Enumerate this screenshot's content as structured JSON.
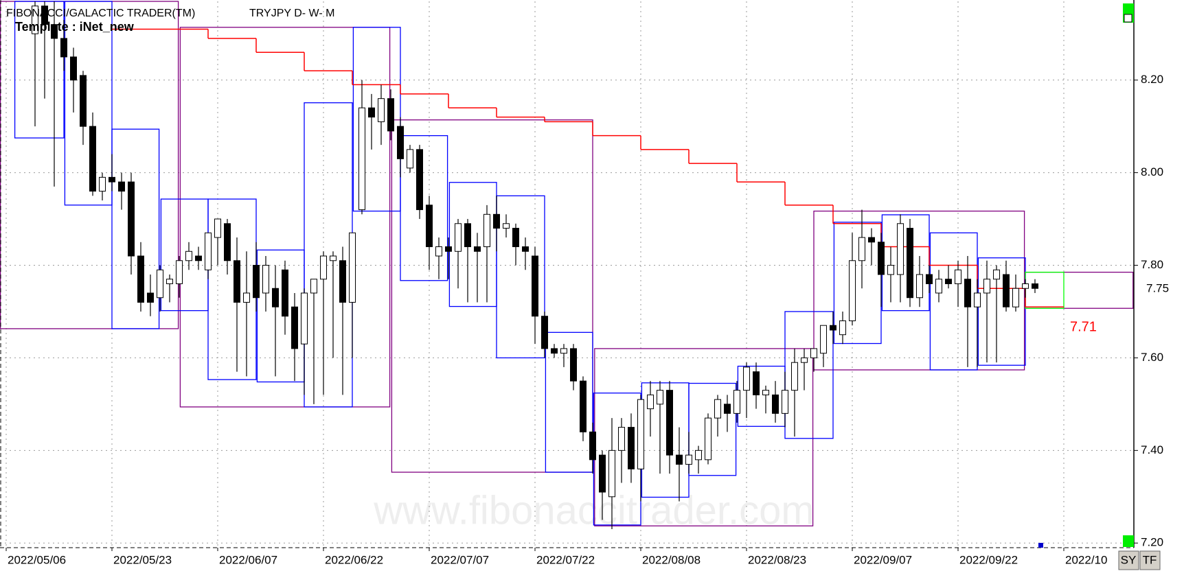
{
  "chart_data": {
    "type": "candlestick",
    "title": "FIBONACCI/GALACTIC TRADER(TM)",
    "subtitle": "TRYJPY D- W- M",
    "template": "Template : iNet_new",
    "watermark": "www.fibonaccitrader.com",
    "buttons": [
      "SY",
      "TF"
    ],
    "categories": [
      "2022/05/06",
      null,
      null,
      null,
      null,
      null,
      null,
      null,
      null,
      null,
      null,
      "2022/05/23",
      null,
      null,
      null,
      null,
      null,
      null,
      null,
      null,
      null,
      null,
      "2022/06/07",
      null,
      null,
      null,
      null,
      null,
      null,
      null,
      null,
      null,
      null,
      "2022/06/22",
      null,
      null,
      null,
      null,
      null,
      null,
      null,
      null,
      null,
      null,
      "2022/07/07",
      null,
      null,
      null,
      null,
      null,
      null,
      null,
      null,
      null,
      null,
      "2022/07/22",
      null,
      null,
      null,
      null,
      null,
      null,
      null,
      null,
      null,
      null,
      "2022/08/08",
      null,
      null,
      null,
      null,
      null,
      null,
      null,
      null,
      null,
      null,
      "2022/08/23",
      null,
      null,
      null,
      null,
      null,
      null,
      null,
      null,
      null,
      null,
      "2022/09/07",
      null,
      null,
      null,
      null,
      null,
      null,
      null,
      null,
      null,
      null,
      "2022/09/22",
      null,
      null,
      null,
      null,
      null,
      null,
      null,
      null,
      null,
      null,
      "2022/10"
    ],
    "open": [
      null,
      null,
      null,
      8.3,
      8.36,
      8.32,
      8.29,
      8.25,
      8.21,
      8.1,
      7.96,
      7.99,
      7.98,
      7.98,
      7.82,
      7.74,
      7.73,
      7.76,
      7.76,
      7.81,
      7.82,
      7.79,
      7.86,
      7.89,
      7.81,
      7.72,
      7.8,
      7.74,
      7.75,
      7.79,
      7.71,
      7.63,
      7.74,
      7.77,
      7.81,
      7.81,
      7.72,
      7.92,
      8.14,
      8.11,
      8.16,
      8.1,
      8.01,
      8.05,
      7.93,
      7.82,
      7.84,
      7.83,
      7.89,
      7.84,
      7.84,
      7.91,
      7.88,
      7.88,
      7.84,
      7.82,
      7.69,
      7.62,
      7.61,
      7.62,
      7.55,
      7.44,
      7.39,
      7.3,
      7.4,
      7.45,
      7.36,
      7.49,
      7.5,
      7.53,
      7.39,
      7.37,
      7.38,
      7.38,
      7.47,
      7.5,
      7.48,
      7.53,
      7.57,
      7.52,
      7.52,
      7.48,
      7.53,
      7.59,
      7.6,
      7.61,
      7.67,
      7.65,
      7.68,
      7.81,
      7.86,
      7.85,
      7.78,
      7.78,
      7.88,
      7.73,
      7.78,
      7.74,
      7.77,
      7.76,
      7.77,
      7.71,
      7.74,
      7.77,
      7.78,
      7.71,
      7.75,
      7.76,
      null,
      null,
      null
    ],
    "high": [
      null,
      null,
      null,
      8.37,
      8.37,
      8.37,
      8.33,
      8.27,
      8.22,
      8.13,
      8.0,
      8.04,
      8.0,
      8.0,
      7.85,
      7.78,
      7.8,
      7.78,
      7.82,
      7.85,
      7.84,
      7.87,
      7.9,
      7.9,
      7.86,
      7.83,
      7.85,
      7.82,
      7.8,
      7.81,
      7.74,
      7.75,
      7.76,
      7.83,
      7.83,
      7.84,
      7.87,
      8.2,
      8.17,
      8.19,
      8.18,
      8.12,
      8.06,
      8.06,
      7.95,
      7.86,
      7.86,
      7.9,
      7.9,
      7.87,
      7.93,
      7.95,
      7.91,
      7.89,
      7.86,
      7.84,
      7.7,
      7.63,
      7.63,
      7.63,
      7.56,
      7.46,
      7.4,
      7.47,
      7.47,
      7.48,
      7.52,
      7.55,
      7.55,
      7.55,
      7.45,
      7.44,
      7.41,
      7.48,
      7.52,
      7.52,
      7.55,
      7.59,
      7.59,
      7.54,
      7.55,
      7.57,
      7.62,
      7.62,
      7.62,
      7.67,
      7.7,
      7.7,
      7.87,
      7.92,
      7.88,
      7.87,
      7.84,
      7.91,
      7.9,
      7.82,
      7.8,
      7.79,
      7.8,
      7.81,
      7.82,
      7.77,
      7.81,
      7.8,
      7.81,
      7.78,
      7.77,
      7.77,
      null,
      null,
      null
    ],
    "low": [
      null,
      null,
      null,
      8.1,
      8.16,
      7.97,
      8.22,
      8.13,
      8.06,
      7.95,
      7.94,
      7.96,
      7.92,
      7.78,
      7.7,
      7.69,
      7.7,
      7.72,
      7.73,
      7.79,
      7.79,
      7.77,
      7.8,
      7.78,
      7.57,
      7.56,
      7.7,
      7.7,
      7.56,
      7.65,
      7.55,
      7.52,
      7.5,
      7.52,
      7.6,
      7.52,
      7.6,
      7.91,
      8.05,
      8.06,
      8.07,
      7.99,
      8.0,
      7.9,
      7.79,
      7.77,
      7.77,
      7.75,
      7.72,
      7.72,
      7.72,
      7.83,
      7.86,
      7.8,
      7.79,
      7.63,
      7.6,
      7.6,
      7.58,
      7.53,
      7.42,
      7.35,
      7.25,
      7.23,
      7.33,
      7.33,
      7.29,
      7.43,
      7.35,
      7.35,
      7.29,
      7.35,
      7.35,
      7.37,
      7.43,
      7.44,
      7.46,
      7.47,
      7.49,
      7.48,
      7.46,
      7.45,
      7.43,
      7.53,
      7.57,
      7.58,
      7.63,
      7.63,
      7.67,
      7.75,
      7.8,
      7.71,
      7.72,
      7.72,
      7.71,
      7.71,
      7.74,
      7.72,
      7.75,
      7.71,
      7.58,
      7.58,
      7.59,
      7.59,
      7.7,
      7.7,
      7.73,
      7.74,
      null,
      null,
      null
    ],
    "close": [
      null,
      null,
      null,
      8.36,
      8.32,
      8.29,
      8.25,
      8.2,
      8.1,
      7.96,
      7.99,
      7.98,
      7.96,
      7.82,
      7.72,
      7.72,
      7.79,
      7.77,
      7.81,
      7.83,
      7.81,
      7.87,
      7.9,
      7.81,
      7.72,
      7.74,
      7.73,
      7.8,
      7.71,
      7.69,
      7.62,
      7.74,
      7.77,
      7.82,
      7.82,
      7.72,
      7.87,
      8.14,
      8.12,
      8.16,
      8.09,
      8.03,
      8.05,
      7.92,
      7.84,
      7.84,
      7.83,
      7.89,
      7.84,
      7.83,
      7.91,
      7.88,
      7.89,
      7.84,
      7.83,
      7.69,
      7.62,
      7.61,
      7.62,
      7.55,
      7.44,
      7.38,
      7.31,
      7.4,
      7.45,
      7.36,
      7.51,
      7.52,
      7.53,
      7.39,
      7.37,
      7.39,
      7.4,
      7.47,
      7.51,
      7.48,
      7.53,
      7.58,
      7.52,
      7.53,
      7.48,
      7.53,
      7.59,
      7.6,
      7.62,
      7.67,
      7.66,
      7.68,
      7.81,
      7.86,
      7.85,
      7.78,
      7.8,
      7.89,
      7.73,
      7.78,
      7.76,
      7.77,
      7.76,
      7.79,
      7.71,
      7.74,
      7.77,
      7.79,
      7.71,
      7.75,
      7.76,
      7.75,
      null,
      null,
      null
    ],
    "weekly_boxes": {
      "color": "#0000ff",
      "boxes": [
        {
          "start": 0.9,
          "end": 6,
          "high": 8.37,
          "low": 8.075
        },
        {
          "start": 6.1,
          "end": 11,
          "high": 8.37,
          "low": 7.93
        },
        {
          "start": 11,
          "end": 15.9,
          "high": 8.094,
          "low": 7.663
        },
        {
          "start": 16.1,
          "end": 21,
          "high": 7.943,
          "low": 7.702
        },
        {
          "start": 21,
          "end": 26,
          "high": 7.943,
          "low": 7.553
        },
        {
          "start": 26.1,
          "end": 31,
          "high": 7.833,
          "low": 7.548
        },
        {
          "start": 31,
          "end": 36,
          "high": 8.151,
          "low": 7.494
        },
        {
          "start": 36.1,
          "end": 41,
          "high": 8.314,
          "low": 7.917
        },
        {
          "start": 41,
          "end": 45.9,
          "high": 8.08,
          "low": 7.767
        },
        {
          "start": 46.1,
          "end": 51,
          "high": 7.979,
          "low": 7.711
        },
        {
          "start": 51,
          "end": 56,
          "high": 7.95,
          "low": 7.6
        },
        {
          "start": 56.1,
          "end": 61,
          "high": 7.655,
          "low": 7.353
        },
        {
          "start": 61.1,
          "end": 66,
          "high": 7.524,
          "low": 7.239
        },
        {
          "start": 66.1,
          "end": 71,
          "high": 7.546,
          "low": 7.299
        },
        {
          "start": 71,
          "end": 75.9,
          "high": 7.545,
          "low": 7.346
        },
        {
          "start": 76.1,
          "end": 81,
          "high": 7.582,
          "low": 7.452
        },
        {
          "start": 81,
          "end": 86,
          "high": 7.7,
          "low": 7.426
        },
        {
          "start": 86.1,
          "end": 91,
          "high": 7.893,
          "low": 7.631
        },
        {
          "start": 91.1,
          "end": 96,
          "high": 7.909,
          "low": 7.702
        },
        {
          "start": 96.1,
          "end": 101,
          "high": 7.87,
          "low": 7.574
        },
        {
          "start": 101.1,
          "end": 106,
          "high": 7.816,
          "low": 7.584
        }
      ]
    },
    "current_box": {
      "color": "#00ff00",
      "start": 106,
      "end": 110,
      "high": 7.785,
      "low": 7.707
    },
    "monthly_boxes": {
      "color": "#800080",
      "boxes": [
        {
          "start": -0.6,
          "end": 17.9,
          "high": 8.37,
          "low": 7.663
        },
        {
          "start": 18.1,
          "end": 39.9,
          "high": 8.314,
          "low": 7.494
        },
        {
          "start": 40.1,
          "end": 61,
          "high": 8.114,
          "low": 7.353
        },
        {
          "start": 61.2,
          "end": 83.9,
          "high": 7.62,
          "low": 7.237
        },
        {
          "start": 84,
          "end": 105.9,
          "high": 7.917,
          "low": 7.574
        },
        {
          "start": 106,
          "end": 117.2,
          "high": 7.785,
          "low": 7.707
        }
      ]
    },
    "trail": {
      "color": "#ff0000",
      "edges": [
        11,
        21,
        26,
        31,
        36,
        41,
        46,
        51,
        56,
        61,
        66,
        71,
        76,
        81,
        86,
        91,
        96,
        101,
        106,
        110
      ],
      "values": [
        8.31,
        8.29,
        8.26,
        8.22,
        8.19,
        8.17,
        8.14,
        8.12,
        8.11,
        8.08,
        8.05,
        8.02,
        7.98,
        7.93,
        7.89,
        7.84,
        7.8,
        7.75,
        7.71
      ]
    },
    "xlim": [
      -0.6,
      117.2
    ],
    "ylim": [
      7.19,
      8.37
    ],
    "yticks": [
      {
        "value": 7.2,
        "label": "7.20"
      },
      {
        "value": 7.4,
        "label": "7.40"
      },
      {
        "value": 7.6,
        "label": "7.60"
      },
      {
        "value": 7.8,
        "label": "7.80"
      },
      {
        "value": 8.0,
        "label": "8.00"
      },
      {
        "value": 8.2,
        "label": "8.20"
      }
    ],
    "grid": true
  }
}
